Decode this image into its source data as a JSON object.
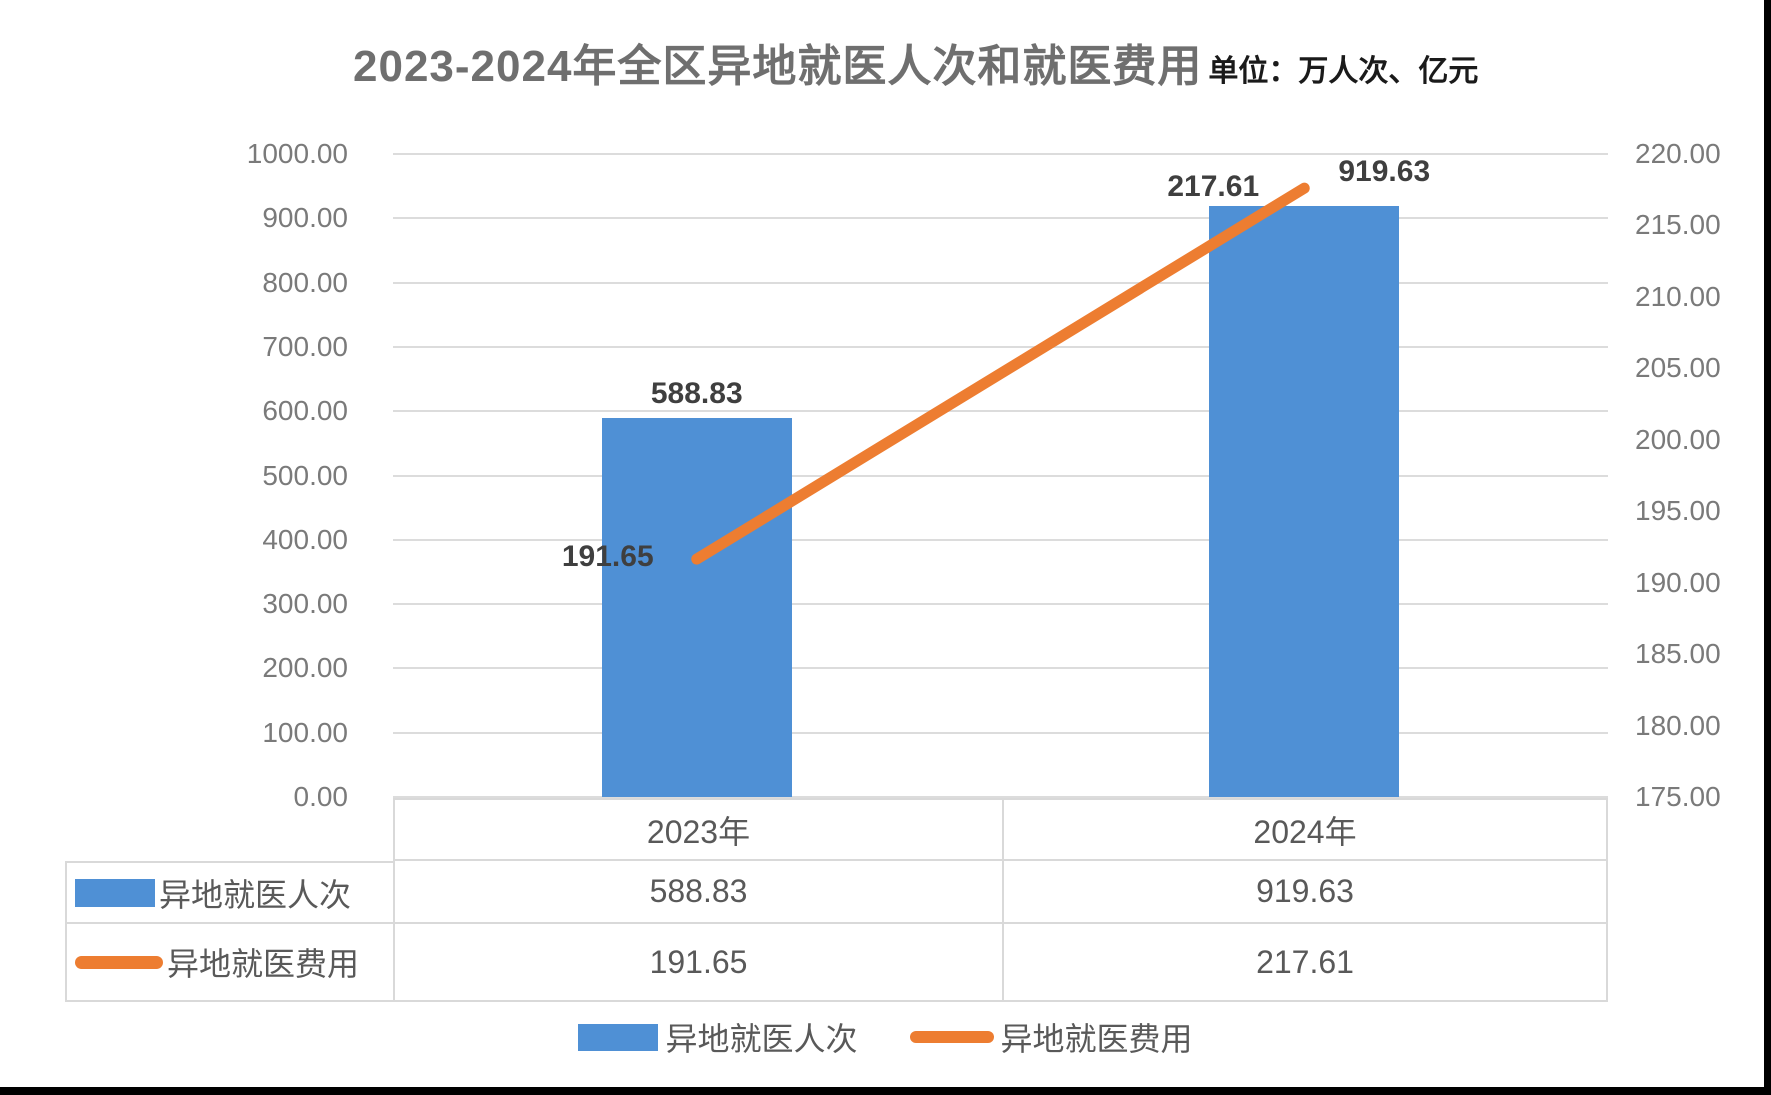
{
  "chart_data": {
    "type": "bar+line",
    "title": "2023-2024年全区异地就医人次和就医费用",
    "unit_note": "单位：万人次、亿元",
    "categories": [
      "2023年",
      "2024年"
    ],
    "series": [
      {
        "name": "异地就医人次",
        "type": "bar",
        "axis": "left",
        "color": "#4f90d5",
        "values": [
          588.83,
          919.63
        ],
        "labels": [
          "588.83",
          "919.63"
        ]
      },
      {
        "name": "异地就医费用",
        "type": "line",
        "axis": "right",
        "color": "#ed7d31",
        "values": [
          191.65,
          217.61
        ],
        "labels": [
          "191.65",
          "217.61"
        ]
      }
    ],
    "left_axis": {
      "min": 0,
      "max": 1000,
      "step": 100,
      "decimals": 2
    },
    "right_axis": {
      "min": 175,
      "max": 220,
      "step": 5,
      "decimals": 2
    },
    "grid": true,
    "legend_position": "bottom",
    "data_table_shown": true
  },
  "palette": {
    "bar_blue": "#4f90d5",
    "line_orange": "#ed7d31",
    "gridline": "#dcdcdc",
    "table_border": "#d9d9d9",
    "axis_text": "#7a7a7a",
    "title_text": "#6f6f6f",
    "data_label_text": "#3f3f3f",
    "table_text": "#595959"
  }
}
